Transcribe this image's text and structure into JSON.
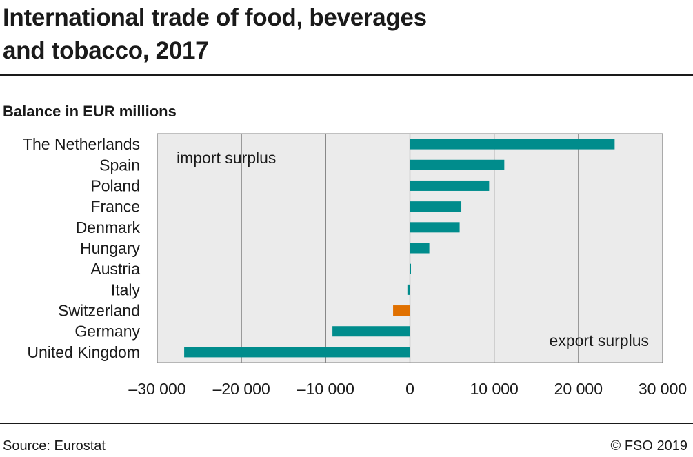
{
  "header": {
    "title": "International trade of food, beverages\nand tobacco, 2017",
    "subtitle": "Balance in EUR millions"
  },
  "footer": {
    "source": "Source: Eurostat",
    "copyright": "© FSO 2019"
  },
  "colors": {
    "default_bar": "#008c8c",
    "highlight_bar": "#e07000",
    "plot_background": "#ebebeb",
    "gridline": "#808080"
  },
  "chart_data": {
    "type": "bar",
    "orientation": "horizontal",
    "title": "International trade of food, beverages and tobacco, 2017",
    "subtitle": "Balance in EUR millions",
    "xlabel": "",
    "ylabel": "",
    "categories": [
      "The Netherlands",
      "Spain",
      "Poland",
      "France",
      "Denmark",
      "Hungary",
      "Austria",
      "Italy",
      "Switzerland",
      "Germany",
      "United Kingdom"
    ],
    "values": [
      24300,
      11200,
      9400,
      6100,
      5900,
      2300,
      100,
      -300,
      -2000,
      -9200,
      -26800
    ],
    "highlight": "Switzerland",
    "xlim": [
      -30000,
      30000
    ],
    "xticks": [
      -30000,
      -20000,
      -10000,
      0,
      10000,
      20000,
      30000
    ],
    "xtick_labels": [
      "–30 000",
      "–20 000",
      "–10 000",
      "0",
      "10 000",
      "20 000",
      "30 000"
    ],
    "grid": true,
    "annotations": [
      "import surplus",
      "export surplus"
    ]
  }
}
